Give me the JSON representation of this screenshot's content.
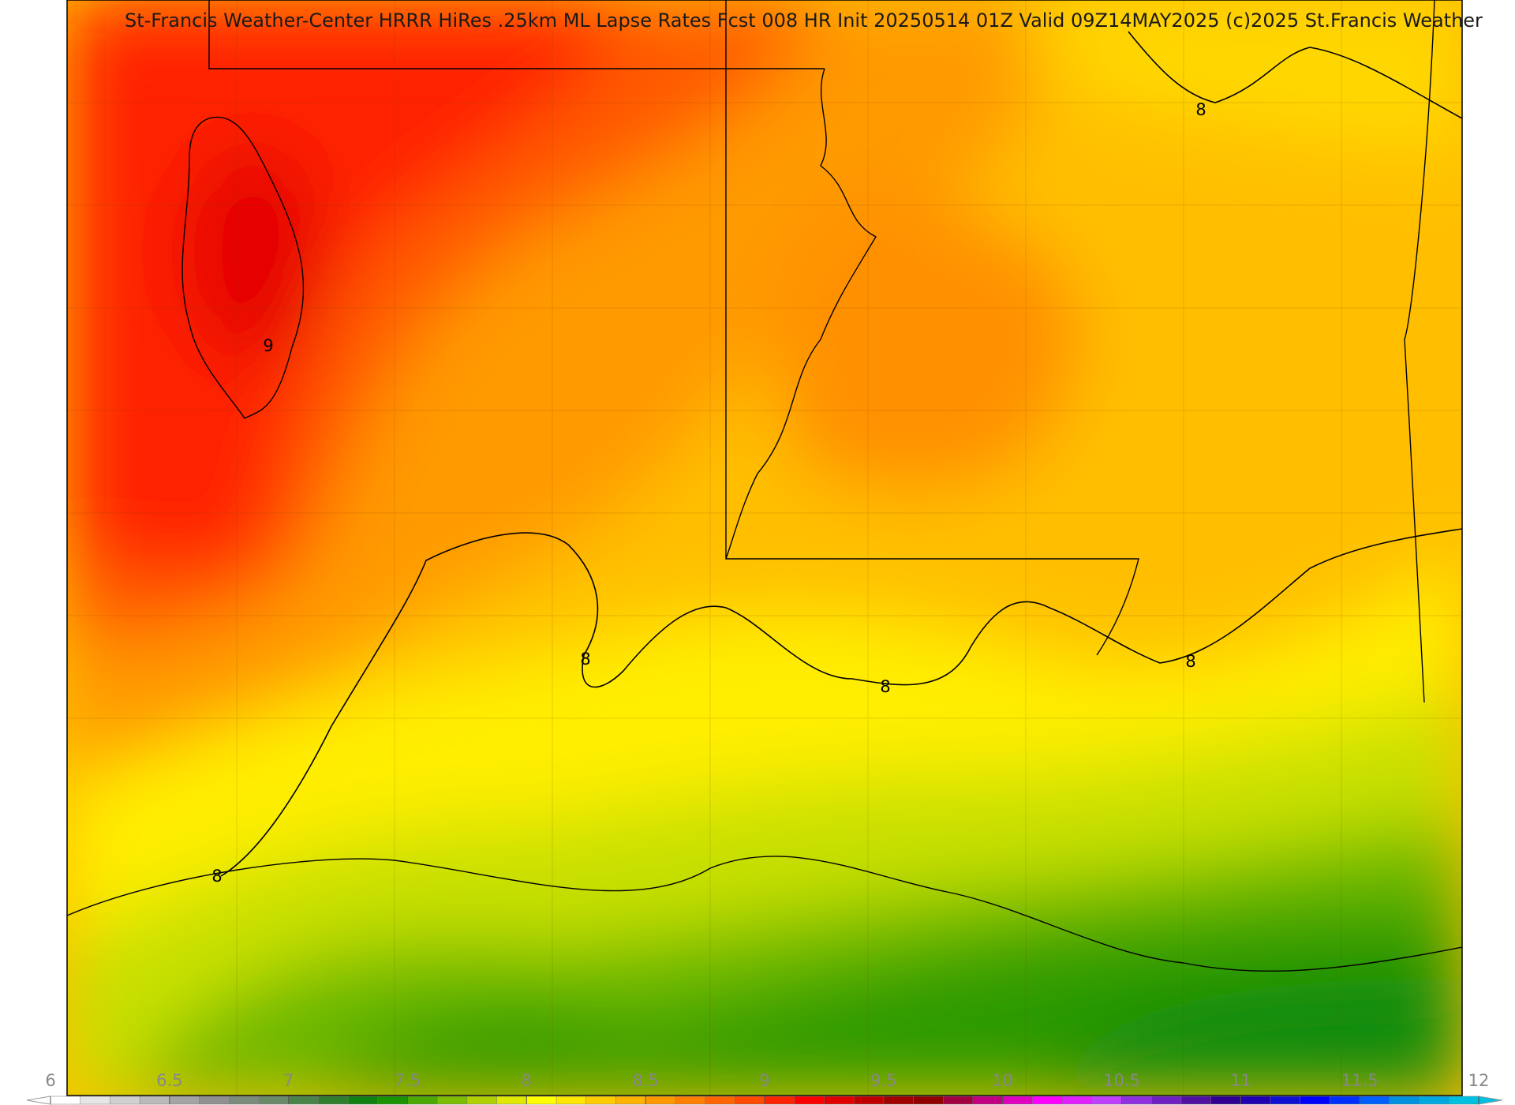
{
  "title": "St-Francis Weather-Center HRRR HiRes .25km ML Lapse Rates  Fcst 008 HR Init 20250514 01Z  Valid 09Z14MAY2025    (c)2025 St.Francis Weather",
  "contour_labels": [
    "9",
    "8",
    "8",
    "8",
    "8",
    "8"
  ],
  "colorbar": {
    "range": [
      6,
      12
    ],
    "ticks": [
      6,
      6.5,
      7,
      7.5,
      8,
      8.5,
      9,
      9.5,
      10,
      10.5,
      11,
      11.5,
      12
    ],
    "colors": [
      "#ffffff",
      "#e6e6e6",
      "#d0d0d0",
      "#bababa",
      "#a4a4a4",
      "#909090",
      "#7c8c7c",
      "#6a8a6a",
      "#4a844a",
      "#2e7e2e",
      "#108010",
      "#1a9400",
      "#4aa800",
      "#7dbc00",
      "#b0d000",
      "#e0e800",
      "#ffff00",
      "#ffe600",
      "#ffcc00",
      "#ffb300",
      "#ff9900",
      "#ff8000",
      "#ff6600",
      "#ff4a00",
      "#ff2400",
      "#ff0000",
      "#e00000",
      "#c00000",
      "#a00000",
      "#900000",
      "#a00040",
      "#c00080",
      "#e000c0",
      "#ff00ff",
      "#e020ff",
      "#c040ff",
      "#9030e0",
      "#7020c0",
      "#5010a0",
      "#300090",
      "#2000b0",
      "#1010d0",
      "#0000ff",
      "#0030ff",
      "#0060ff",
      "#0090e0",
      "#00a8e0",
      "#00c0e0"
    ]
  }
}
